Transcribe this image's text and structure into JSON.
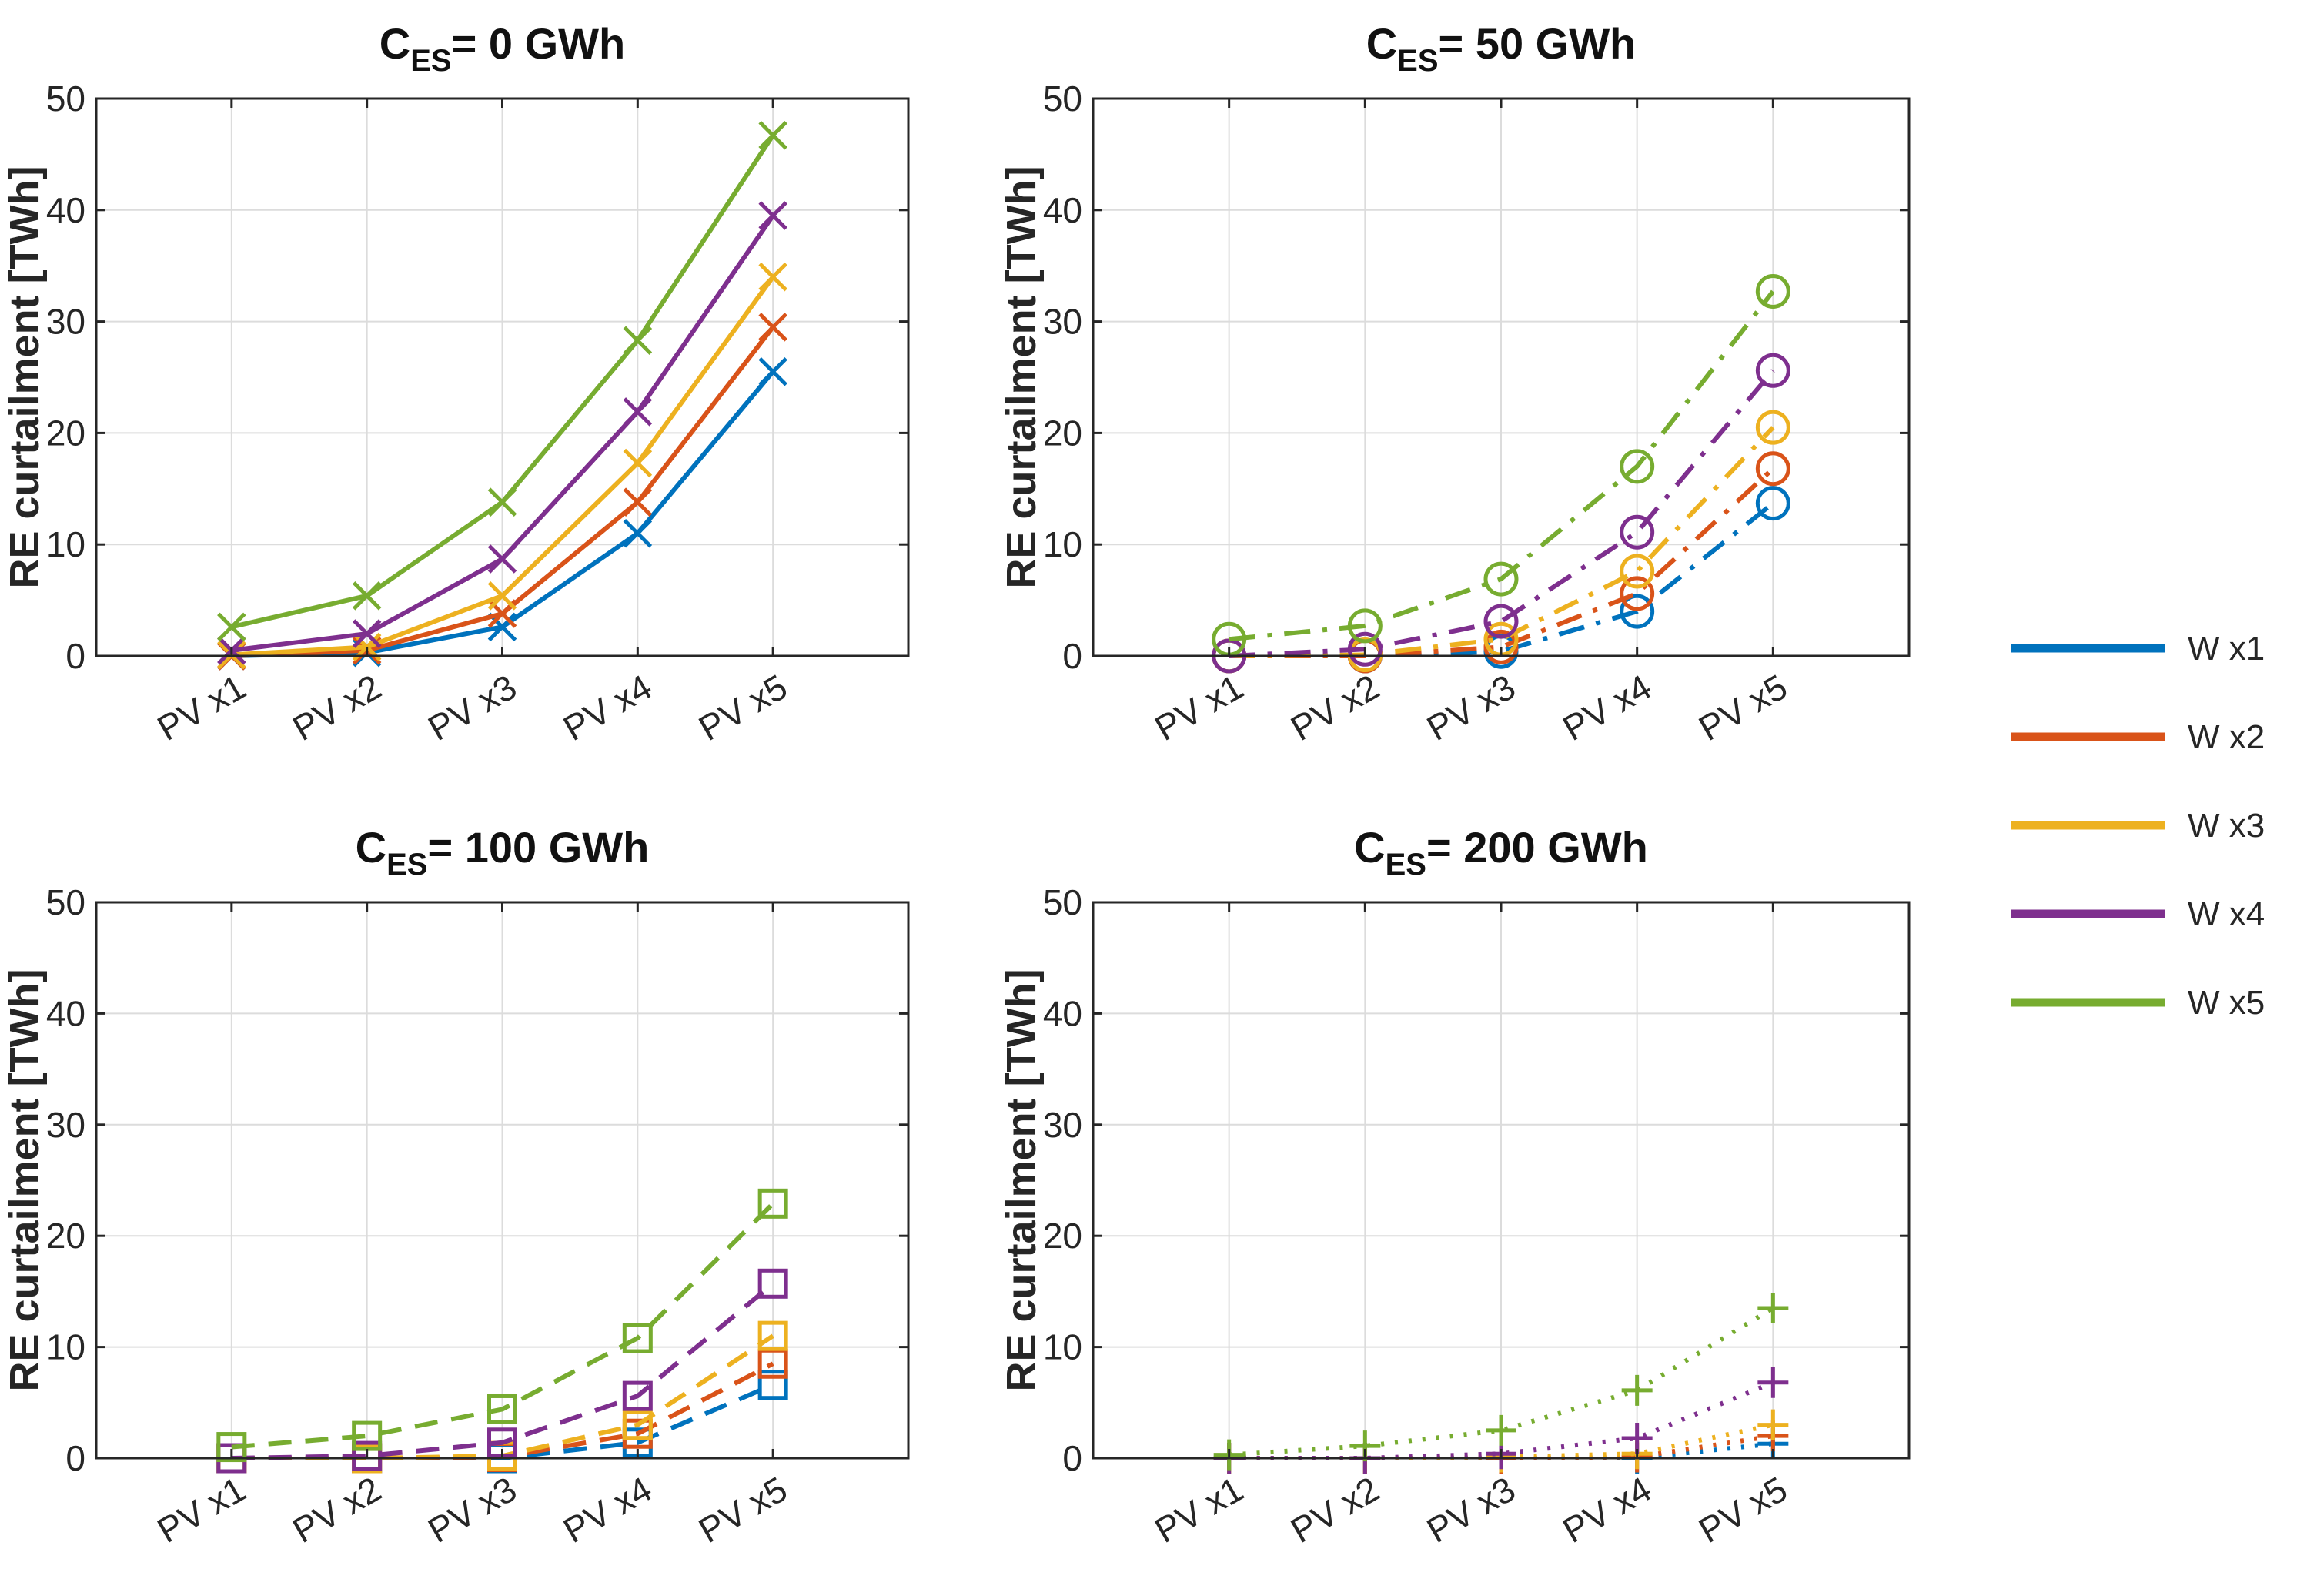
{
  "colors": {
    "W x1": "#0072BD",
    "W x2": "#D95319",
    "W x3": "#EDB120",
    "W x4": "#7E2F8E",
    "W x5": "#77AC30"
  },
  "legend": {
    "entries": [
      "W x1",
      "W x2",
      "W x3",
      "W x4",
      "W x5"
    ],
    "placement": "right"
  },
  "chart_data": [
    {
      "type": "line",
      "title_main": "C",
      "title_sub": "ES",
      "title_rest": "= 0 GWh",
      "ylabel": "RE curtailment [TWh]",
      "categories": [
        "PV x1",
        "PV x2",
        "PV x3",
        "PV x4",
        "PV x5"
      ],
      "ylim": [
        0,
        50
      ],
      "yticks": [
        "0",
        "10",
        "20",
        "30",
        "40",
        "50"
      ],
      "grid": true,
      "line_style": "solid",
      "marker": "x",
      "series": [
        {
          "name": "W x1",
          "values": [
            0,
            0.3,
            2.6,
            11.0,
            25.5
          ]
        },
        {
          "name": "W x2",
          "values": [
            0,
            0.5,
            3.8,
            13.8,
            29.5
          ]
        },
        {
          "name": "W x3",
          "values": [
            0.1,
            0.8,
            5.4,
            17.3,
            34.0
          ]
        },
        {
          "name": "W x4",
          "values": [
            0.5,
            2.0,
            8.7,
            21.9,
            39.5
          ]
        },
        {
          "name": "W x5",
          "values": [
            2.6,
            5.4,
            13.8,
            28.3,
            46.7
          ]
        }
      ]
    },
    {
      "type": "line",
      "title_main": "C",
      "title_sub": "ES",
      "title_rest": "= 50 GWh",
      "ylabel": "RE curtailment [TWh]",
      "categories": [
        "PV x1",
        "PV x2",
        "PV x3",
        "PV x4",
        "PV x5"
      ],
      "ylim": [
        0,
        50
      ],
      "yticks": [
        "0",
        "10",
        "20",
        "30",
        "40",
        "50"
      ],
      "grid": true,
      "line_style": "dashdot",
      "marker": "o",
      "series": [
        {
          "name": "W x1",
          "values": [
            0,
            0,
            0.4,
            4.0,
            13.7
          ]
        },
        {
          "name": "W x2",
          "values": [
            0,
            0,
            0.8,
            5.6,
            16.8
          ]
        },
        {
          "name": "W x3",
          "values": [
            0,
            0.1,
            1.5,
            7.6,
            20.5
          ]
        },
        {
          "name": "W x4",
          "values": [
            0,
            0.6,
            3.1,
            11.1,
            25.6
          ]
        },
        {
          "name": "W x5",
          "values": [
            1.5,
            2.7,
            6.9,
            17.0,
            32.7
          ]
        }
      ]
    },
    {
      "type": "line",
      "title_main": "C",
      "title_sub": "ES",
      "title_rest": "= 100 GWh",
      "ylabel": "RE curtailment [TWh]",
      "categories": [
        "PV x1",
        "PV x2",
        "PV x3",
        "PV x4",
        "PV x5"
      ],
      "ylim": [
        0,
        50
      ],
      "yticks": [
        "0",
        "10",
        "20",
        "30",
        "40",
        "50"
      ],
      "grid": true,
      "line_style": "dashed",
      "marker": "square",
      "series": [
        {
          "name": "W x1",
          "values": [
            0,
            0,
            0,
            1.4,
            6.6
          ]
        },
        {
          "name": "W x2",
          "values": [
            0,
            0,
            0.1,
            2.2,
            8.5
          ]
        },
        {
          "name": "W x3",
          "values": [
            0,
            0,
            0.2,
            3.0,
            11.0
          ]
        },
        {
          "name": "W x4",
          "values": [
            0,
            0.2,
            1.4,
            5.6,
            15.7
          ]
        },
        {
          "name": "W x5",
          "values": [
            1.0,
            2.0,
            4.4,
            10.8,
            22.9
          ]
        }
      ]
    },
    {
      "type": "line",
      "title_main": "C",
      "title_sub": "ES",
      "title_rest": "= 200 GWh",
      "ylabel": "RE curtailment [TWh]",
      "categories": [
        "PV x1",
        "PV x2",
        "PV x3",
        "PV x4",
        "PV x5"
      ],
      "ylim": [
        0,
        50
      ],
      "yticks": [
        "0",
        "10",
        "20",
        "30",
        "40",
        "50"
      ],
      "grid": true,
      "line_style": "dotted",
      "marker": "+",
      "series": [
        {
          "name": "W x1",
          "values": [
            0,
            0,
            0,
            0,
            1.3
          ]
        },
        {
          "name": "W x2",
          "values": [
            0,
            0,
            0,
            0.1,
            2.0
          ]
        },
        {
          "name": "W x3",
          "values": [
            0,
            0,
            0.1,
            0.4,
            3.0
          ]
        },
        {
          "name": "W x4",
          "values": [
            0,
            0,
            0.4,
            1.8,
            6.8
          ]
        },
        {
          "name": "W x5",
          "values": [
            0.3,
            1.1,
            2.5,
            6.1,
            13.5
          ]
        }
      ]
    }
  ]
}
